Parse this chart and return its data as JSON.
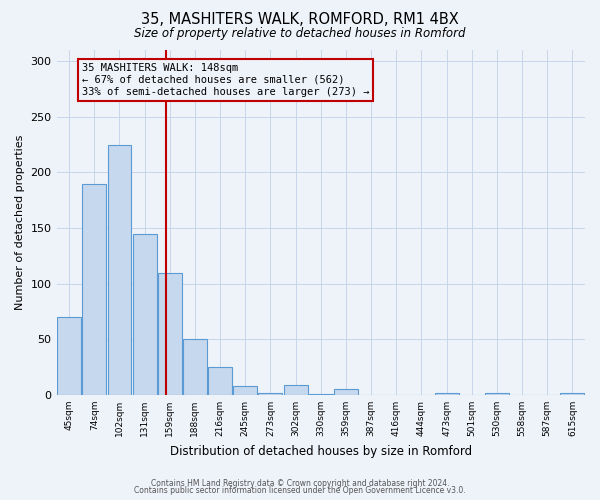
{
  "title": "35, MASHITERS WALK, ROMFORD, RM1 4BX",
  "subtitle": "Size of property relative to detached houses in Romford",
  "xlabel": "Distribution of detached houses by size in Romford",
  "ylabel": "Number of detached properties",
  "bar_values": [
    70,
    190,
    225,
    145,
    110,
    50,
    25,
    8,
    2,
    9,
    1,
    5,
    0,
    0,
    0,
    2,
    0,
    2,
    0,
    0,
    2
  ],
  "bin_labels": [
    "45sqm",
    "74sqm",
    "102sqm",
    "131sqm",
    "159sqm",
    "188sqm",
    "216sqm",
    "245sqm",
    "273sqm",
    "302sqm",
    "330sqm",
    "359sqm",
    "387sqm",
    "416sqm",
    "444sqm",
    "473sqm",
    "501sqm",
    "530sqm",
    "558sqm",
    "587sqm",
    "615sqm"
  ],
  "vline_bin_index": 3.85,
  "bar_color": "#c5d8ed",
  "bar_edge_color": "#5b9bd5",
  "vline_color": "#c00000",
  "ylim": [
    0,
    310
  ],
  "annotation_title": "35 MASHITERS WALK: 148sqm",
  "annotation_line1": "← 67% of detached houses are smaller (562)",
  "annotation_line2": "33% of semi-detached houses are larger (273) →",
  "annotation_box_color": "#c00000",
  "footer1": "Contains HM Land Registry data © Crown copyright and database right 2024.",
  "footer2": "Contains public sector information licensed under the Open Government Licence v3.0.",
  "background_color": "#eef2f9"
}
